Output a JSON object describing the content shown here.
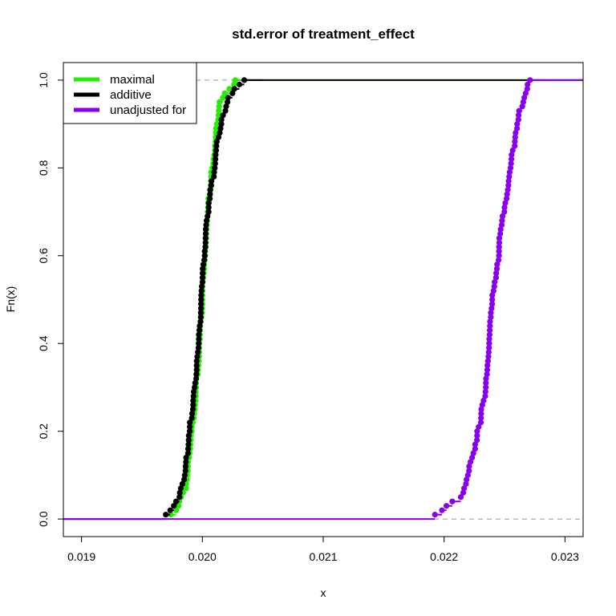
{
  "chart_data": {
    "type": "line",
    "subtype": "ecdf-step",
    "title": "std.error of treatment_effect",
    "xlabel": "x",
    "ylabel": "Fn(x)",
    "xlim": [
      0.01885,
      0.02315
    ],
    "ylim": [
      -0.04,
      1.04
    ],
    "x_ticks": [
      0.019,
      0.02,
      0.021,
      0.022,
      0.023
    ],
    "x_tick_labels": [
      "0.019",
      "0.020",
      "0.021",
      "0.022",
      "0.023"
    ],
    "y_ticks": [
      0.0,
      0.2,
      0.4,
      0.6,
      0.8,
      1.0
    ],
    "y_tick_labels": [
      "0.0",
      "0.2",
      "0.4",
      "0.6",
      "0.8",
      "1.0"
    ],
    "reference_lines_y": [
      0,
      1
    ],
    "reference_line_color": "#999999",
    "legend_position": "top-left",
    "series": [
      {
        "name": "maximal",
        "color": "#22ee00",
        "quantiles": [
          [
            0.0,
            0.01974
          ],
          [
            0.05,
            0.01985
          ],
          [
            0.15,
            0.0199
          ],
          [
            0.3,
            0.01995
          ],
          [
            0.5,
            0.02
          ],
          [
            0.7,
            0.02005
          ],
          [
            0.85,
            0.0201
          ],
          [
            0.95,
            0.02015
          ],
          [
            1.0,
            0.0203
          ]
        ]
      },
      {
        "name": "additive",
        "color": "#000000",
        "quantiles": [
          [
            0.0,
            0.0197
          ],
          [
            0.05,
            0.01982
          ],
          [
            0.15,
            0.01988
          ],
          [
            0.3,
            0.01994
          ],
          [
            0.5,
            0.01999
          ],
          [
            0.7,
            0.02005
          ],
          [
            0.85,
            0.02012
          ],
          [
            0.95,
            0.0202
          ],
          [
            1.0,
            0.02035
          ]
        ]
      },
      {
        "name": "unadjusted for",
        "color": "#8800ee",
        "quantiles": [
          [
            0.0,
            0.0219
          ],
          [
            0.05,
            0.02215
          ],
          [
            0.15,
            0.02225
          ],
          [
            0.3,
            0.02235
          ],
          [
            0.5,
            0.0224
          ],
          [
            0.7,
            0.0225
          ],
          [
            0.85,
            0.02258
          ],
          [
            0.95,
            0.02265
          ],
          [
            1.0,
            0.02272
          ]
        ]
      }
    ]
  }
}
